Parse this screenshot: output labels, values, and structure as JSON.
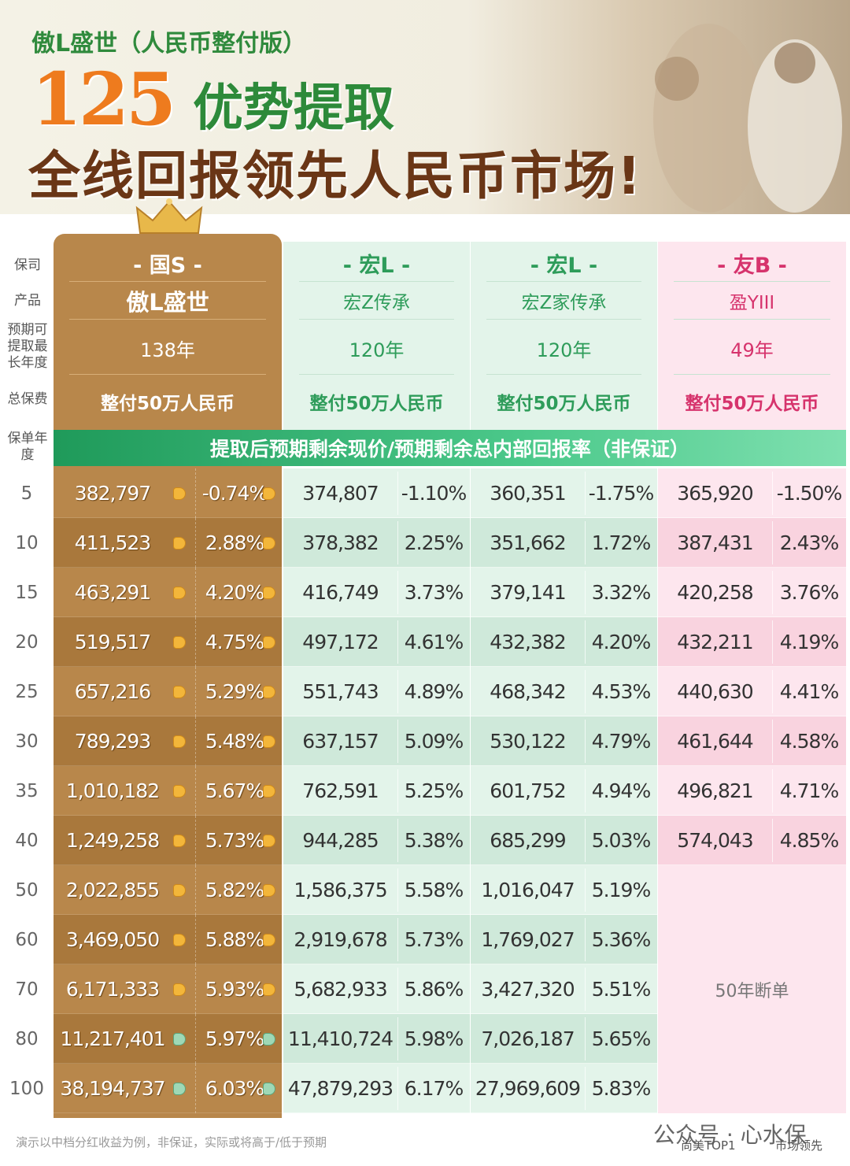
{
  "header": {
    "subtitle": "傲L盛世（人民币整付版）",
    "highlight": "125",
    "headline_1": "优势提取",
    "headline_2": "全线回报领先人民币市场!"
  },
  "row_labels": {
    "company": "保司",
    "product": "产品",
    "max_year": "预期可提取最长年度",
    "premium": "总保费",
    "policy_year": "保单年度"
  },
  "banner": "提取后预期剩余现价/预期剩余总内部回报率（非保证）",
  "years": [
    "5",
    "10",
    "15",
    "20",
    "25",
    "30",
    "35",
    "40",
    "50",
    "60",
    "70",
    "80",
    "100"
  ],
  "columns": [
    {
      "company": "- 国S -",
      "product": "傲L盛世",
      "max_year": "138年",
      "premium": "整付50万人民币",
      "values": [
        [
          "382,797",
          "-0.74%"
        ],
        [
          "411,523",
          "2.88%"
        ],
        [
          "463,291",
          "4.20%"
        ],
        [
          "519,517",
          "4.75%"
        ],
        [
          "657,216",
          "5.29%"
        ],
        [
          "789,293",
          "5.48%"
        ],
        [
          "1,010,182",
          "5.67%"
        ],
        [
          "1,249,258",
          "5.73%"
        ],
        [
          "2,022,855",
          "5.82%"
        ],
        [
          "3,469,050",
          "5.88%"
        ],
        [
          "6,171,333",
          "5.93%"
        ],
        [
          "11,217,401",
          "5.97%"
        ],
        [
          "38,194,737",
          "6.03%"
        ]
      ]
    },
    {
      "company": "- 宏L -",
      "product": "宏Z传承",
      "max_year": "120年",
      "premium": "整付50万人民币",
      "values": [
        [
          "374,807",
          "-1.10%"
        ],
        [
          "378,382",
          "2.25%"
        ],
        [
          "416,749",
          "3.73%"
        ],
        [
          "497,172",
          "4.61%"
        ],
        [
          "551,743",
          "4.89%"
        ],
        [
          "637,157",
          "5.09%"
        ],
        [
          "762,591",
          "5.25%"
        ],
        [
          "944,285",
          "5.38%"
        ],
        [
          "1,586,375",
          "5.58%"
        ],
        [
          "2,919,678",
          "5.73%"
        ],
        [
          "5,682,933",
          "5.86%"
        ],
        [
          "11,410,724",
          "5.98%"
        ],
        [
          "47,879,293",
          "6.17%"
        ]
      ]
    },
    {
      "company": "- 宏L -",
      "product": "宏Z家传承",
      "max_year": "120年",
      "premium": "整付50万人民币",
      "values": [
        [
          "360,351",
          "-1.75%"
        ],
        [
          "351,662",
          "1.72%"
        ],
        [
          "379,141",
          "3.32%"
        ],
        [
          "432,382",
          "4.20%"
        ],
        [
          "468,342",
          "4.53%"
        ],
        [
          "530,122",
          "4.79%"
        ],
        [
          "601,752",
          "4.94%"
        ],
        [
          "685,299",
          "5.03%"
        ],
        [
          "1,016,047",
          "5.19%"
        ],
        [
          "1,769,027",
          "5.36%"
        ],
        [
          "3,427,320",
          "5.51%"
        ],
        [
          "7,026,187",
          "5.65%"
        ],
        [
          "27,969,609",
          "5.83%"
        ]
      ]
    },
    {
      "company": "- 友B -",
      "product": "盈YIII",
      "max_year": "49年",
      "premium": "整付50万人民币",
      "values": [
        [
          "365,920",
          "-1.50%"
        ],
        [
          "387,431",
          "2.43%"
        ],
        [
          "420,258",
          "3.76%"
        ],
        [
          "432,211",
          "4.19%"
        ],
        [
          "440,630",
          "4.41%"
        ],
        [
          "461,644",
          "4.58%"
        ],
        [
          "496,821",
          "4.71%"
        ],
        [
          "574,043",
          "4.85%"
        ]
      ]
    }
  ],
  "lapse_note": "50年断单",
  "footer": {
    "note": "演示以中档分红收益为例，非保证，实际或将高于/低于预期",
    "watermark": "公众号 · 心水保",
    "badge_1": "尚美TOP1",
    "badge_2": "市场领先"
  }
}
